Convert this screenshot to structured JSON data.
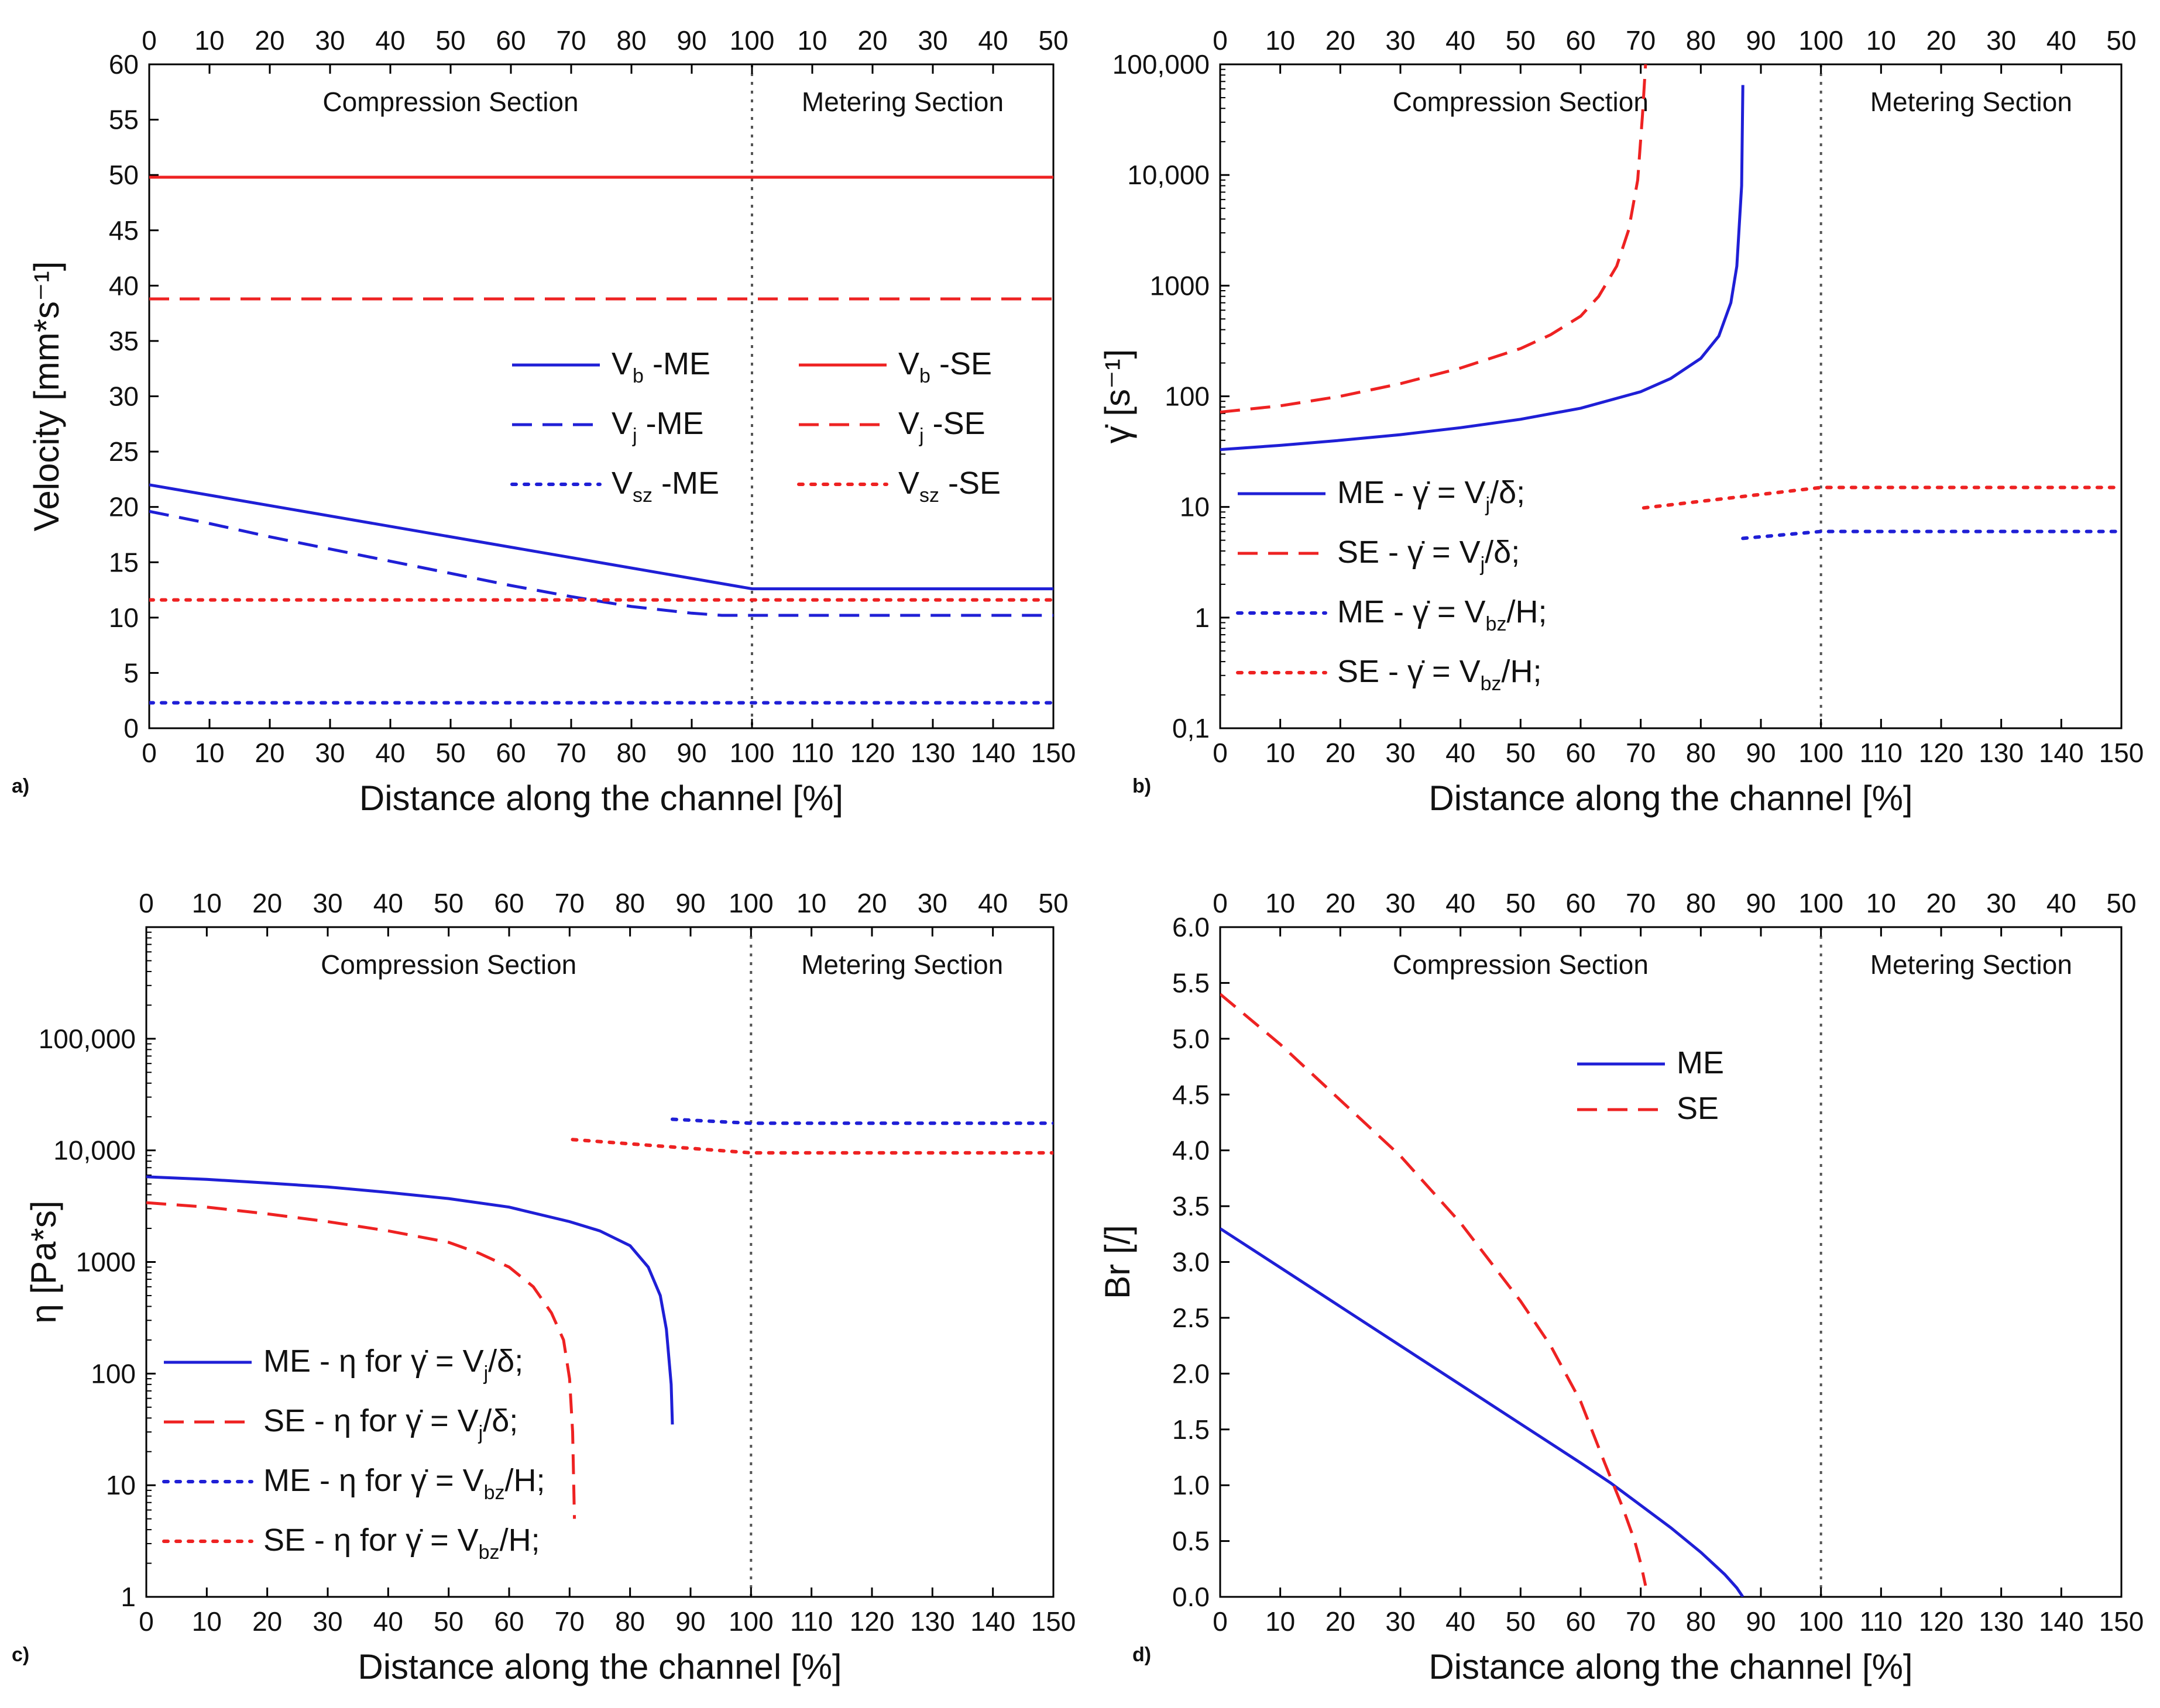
{
  "colors": {
    "me": "#1f1fd6",
    "se": "#ee2222",
    "axis": "#000000",
    "divider": "#555555"
  },
  "chart_data": [
    {
      "id": "a",
      "type": "line",
      "panel_label": "a)",
      "xlabel": "Distance along the channel [%]",
      "ylabel": "Velocity [mm*s⁻¹]",
      "xlim": [
        0,
        150
      ],
      "ylim": [
        0,
        60
      ],
      "yscale": "linear",
      "bottom_ticks": [
        "0",
        "10",
        "20",
        "30",
        "40",
        "50",
        "60",
        "70",
        "80",
        "90",
        "100",
        "110",
        "120",
        "130",
        "140",
        "150"
      ],
      "top_ticks": [
        "0",
        "10",
        "20",
        "30",
        "40",
        "50",
        "60",
        "70",
        "80",
        "90",
        "100",
        "10",
        "20",
        "30",
        "40",
        "50"
      ],
      "y_ticks": [
        {
          "v": 0,
          "t": "0"
        },
        {
          "v": 5,
          "t": "5"
        },
        {
          "v": 10,
          "t": "10"
        },
        {
          "v": 15,
          "t": "15"
        },
        {
          "v": 20,
          "t": "20"
        },
        {
          "v": 25,
          "t": "25"
        },
        {
          "v": 30,
          "t": "30"
        },
        {
          "v": 35,
          "t": "35"
        },
        {
          "v": 40,
          "t": "40"
        },
        {
          "v": 45,
          "t": "45"
        },
        {
          "v": 50,
          "t": "50"
        },
        {
          "v": 55,
          "t": "55"
        },
        {
          "v": 60,
          "t": "60"
        }
      ],
      "sections": [
        "Compression Section",
        "Metering Section"
      ],
      "divider_x": 100,
      "legend_position": "center-right",
      "legend_columns": 2,
      "series": [
        {
          "name": "Vb -ME",
          "label": "V",
          "sub": "b",
          "suffix": " -ME",
          "color": "me",
          "dash": "solid",
          "x": [
            0,
            100,
            150
          ],
          "y": [
            22,
            12.6,
            12.6
          ]
        },
        {
          "name": "Vj -ME",
          "label": "V",
          "sub": "j",
          "suffix": " -ME",
          "color": "me",
          "dash": "dashed",
          "x": [
            0,
            10,
            20,
            30,
            40,
            50,
            60,
            70,
            80,
            90,
            95,
            100,
            150
          ],
          "y": [
            19.6,
            18.5,
            17.3,
            16.2,
            15.1,
            14.0,
            12.9,
            11.9,
            11.0,
            10.4,
            10.2,
            10.2,
            10.2
          ]
        },
        {
          "name": "Vsz -ME",
          "label": "V",
          "sub": "sz",
          "suffix": " -ME",
          "color": "me",
          "dash": "dotted",
          "x": [
            0,
            150
          ],
          "y": [
            2.3,
            2.3
          ]
        },
        {
          "name": "Vb -SE",
          "label": "V",
          "sub": "b",
          "suffix": " -SE",
          "color": "se",
          "dash": "solid",
          "x": [
            0,
            150
          ],
          "y": [
            49.8,
            49.8
          ]
        },
        {
          "name": "Vj -SE",
          "label": "V",
          "sub": "j",
          "suffix": " -SE",
          "color": "se",
          "dash": "dashed",
          "x": [
            0,
            150
          ],
          "y": [
            38.8,
            38.8
          ]
        },
        {
          "name": "Vsz -SE",
          "label": "V",
          "sub": "sz",
          "suffix": " -SE",
          "color": "se",
          "dash": "dotted",
          "x": [
            0,
            150
          ],
          "y": [
            11.6,
            11.6
          ]
        }
      ]
    },
    {
      "id": "b",
      "type": "line",
      "panel_label": "b)",
      "xlabel": "Distance along the channel [%]",
      "ylabel": "γ̇ [s⁻¹]",
      "xlim": [
        0,
        150
      ],
      "ylim": [
        0.1,
        100000
      ],
      "yscale": "log",
      "bottom_ticks": [
        "0",
        "10",
        "20",
        "30",
        "40",
        "50",
        "60",
        "70",
        "80",
        "90",
        "100",
        "110",
        "120",
        "130",
        "140",
        "150"
      ],
      "top_ticks": [
        "0",
        "10",
        "20",
        "30",
        "40",
        "50",
        "60",
        "70",
        "80",
        "90",
        "100",
        "10",
        "20",
        "30",
        "40",
        "50"
      ],
      "y_ticks": [
        {
          "v": 0.1,
          "t": "0,1"
        },
        {
          "v": 1,
          "t": "1"
        },
        {
          "v": 10,
          "t": "10"
        },
        {
          "v": 100,
          "t": "100"
        },
        {
          "v": 1000,
          "t": "1000"
        },
        {
          "v": 10000,
          "t": "10,000"
        },
        {
          "v": 100000,
          "t": "100,000"
        }
      ],
      "sections": [
        "Compression Section",
        "Metering Section"
      ],
      "divider_x": 100,
      "legend_position": "lower-left",
      "legend_columns": 1,
      "series": [
        {
          "name": "ME - γ̇ = Vj/δ;",
          "label": "ME -  γ̇ = V",
          "sub": "j",
          "suffix": "/δ;",
          "color": "me",
          "dash": "solid",
          "x": [
            0,
            10,
            20,
            30,
            40,
            50,
            60,
            70,
            75,
            80,
            83,
            85,
            86,
            86.8,
            87
          ],
          "y": [
            33,
            36,
            40,
            45,
            52,
            62,
            78,
            110,
            145,
            220,
            350,
            700,
            1500,
            8000,
            65000
          ]
        },
        {
          "name": "SE - γ̇ = Vj/δ;",
          "label": "SE -  γ̇ = V",
          "sub": "j",
          "suffix": "/δ;",
          "color": "se",
          "dash": "dashed",
          "x": [
            0,
            10,
            20,
            30,
            40,
            50,
            55,
            60,
            63,
            66,
            68,
            69.5,
            70.3,
            70.8
          ],
          "y": [
            72,
            82,
            100,
            130,
            180,
            270,
            360,
            530,
            800,
            1500,
            3200,
            9000,
            35000,
            100000
          ]
        },
        {
          "name": "ME - γ̇ = Vbz/H;",
          "label": "ME -  γ̇ = V",
          "sub": "bz",
          "suffix": "/H;",
          "color": "me",
          "dash": "dotted",
          "x": [
            87,
            100,
            150
          ],
          "y": [
            5.2,
            6.0,
            6.0
          ]
        },
        {
          "name": "SE - γ̇ = Vbz/H;",
          "label": "SE -  γ̇ = V",
          "sub": "bz",
          "suffix": "/H;",
          "color": "se",
          "dash": "dotted",
          "x": [
            70.5,
            100,
            150
          ],
          "y": [
            9.8,
            15.0,
            15.0
          ]
        }
      ]
    },
    {
      "id": "c",
      "type": "line",
      "panel_label": "c)",
      "xlabel": "Distance along the channel [%]",
      "ylabel": "η [Pa*s]",
      "xlim": [
        0,
        150
      ],
      "ylim": [
        1,
        1000000
      ],
      "yscale": "log",
      "bottom_ticks": [
        "0",
        "10",
        "20",
        "30",
        "40",
        "50",
        "60",
        "70",
        "80",
        "90",
        "100",
        "110",
        "120",
        "130",
        "140",
        "150"
      ],
      "top_ticks": [
        "0",
        "10",
        "20",
        "30",
        "40",
        "50",
        "60",
        "70",
        "80",
        "90",
        "100",
        "10",
        "20",
        "30",
        "40",
        "50"
      ],
      "y_ticks": [
        {
          "v": 1,
          "t": "1"
        },
        {
          "v": 10,
          "t": "10"
        },
        {
          "v": 100,
          "t": "100"
        },
        {
          "v": 1000,
          "t": "1000"
        },
        {
          "v": 10000,
          "t": "10,000"
        },
        {
          "v": 100000,
          "t": "100,000"
        }
      ],
      "sections": [
        "Compression Section",
        "Metering Section"
      ],
      "divider_x": 100,
      "legend_position": "lower-left",
      "legend_columns": 1,
      "series": [
        {
          "name": "ME - η for γ̇ = Vj/δ;",
          "label": "ME - η for γ̇ = V",
          "sub": "j",
          "suffix": "/δ;",
          "color": "me",
          "dash": "solid",
          "x": [
            0,
            10,
            20,
            30,
            40,
            50,
            60,
            70,
            75,
            80,
            83,
            85,
            86,
            86.8,
            87
          ],
          "y": [
            5800,
            5500,
            5100,
            4700,
            4200,
            3700,
            3100,
            2300,
            1900,
            1400,
            900,
            500,
            250,
            80,
            35
          ]
        },
        {
          "name": "SE - η for γ̇ = Vj/δ;",
          "label": "SE - η for γ̇ = V",
          "sub": "j",
          "suffix": "/δ;",
          "color": "se",
          "dash": "dashed",
          "x": [
            0,
            10,
            20,
            30,
            40,
            50,
            55,
            60,
            64,
            67,
            69,
            70,
            70.5,
            70.8
          ],
          "y": [
            3400,
            3100,
            2700,
            2300,
            1900,
            1500,
            1200,
            900,
            600,
            350,
            200,
            90,
            30,
            5
          ]
        },
        {
          "name": "ME - η for γ̇ = Vbz/H;",
          "label": "ME - η for γ̇ = V",
          "sub": "bz",
          "suffix": "/H;",
          "color": "me",
          "dash": "dotted",
          "x": [
            87,
            100,
            150
          ],
          "y": [
            19000,
            17500,
            17500
          ]
        },
        {
          "name": "SE - η for γ̇ = Vbz/H;",
          "label": "SE - η for γ̇ = V",
          "sub": "bz",
          "suffix": "/H;",
          "color": "se",
          "dash": "dotted",
          "x": [
            70.5,
            100,
            150
          ],
          "y": [
            12500,
            9500,
            9500
          ]
        }
      ]
    },
    {
      "id": "d",
      "type": "line",
      "panel_label": "d)",
      "xlabel": "Distance along the channel [%]",
      "ylabel": "Br [/]",
      "xlim": [
        0,
        150
      ],
      "ylim": [
        0,
        6
      ],
      "yscale": "linear",
      "bottom_ticks": [
        "0",
        "10",
        "20",
        "30",
        "40",
        "50",
        "60",
        "70",
        "80",
        "90",
        "100",
        "110",
        "120",
        "130",
        "140",
        "150"
      ],
      "top_ticks": [
        "0",
        "10",
        "20",
        "30",
        "40",
        "50",
        "60",
        "70",
        "80",
        "90",
        "100",
        "10",
        "20",
        "30",
        "40",
        "50"
      ],
      "y_ticks": [
        {
          "v": 0,
          "t": "0.0"
        },
        {
          "v": 0.5,
          "t": "0.5"
        },
        {
          "v": 1,
          "t": "1.0"
        },
        {
          "v": 1.5,
          "t": "1.5"
        },
        {
          "v": 2,
          "t": "2.0"
        },
        {
          "v": 2.5,
          "t": "2.5"
        },
        {
          "v": 3,
          "t": "3.0"
        },
        {
          "v": 3.5,
          "t": "3.5"
        },
        {
          "v": 4,
          "t": "4.0"
        },
        {
          "v": 4.5,
          "t": "4.5"
        },
        {
          "v": 5,
          "t": "5.0"
        },
        {
          "v": 5.5,
          "t": "5.5"
        },
        {
          "v": 6,
          "t": "6.0"
        }
      ],
      "sections": [
        "Compression Section",
        "Metering Section"
      ],
      "divider_x": 100,
      "legend_position": "upper-center",
      "legend_columns": 1,
      "series": [
        {
          "name": "ME",
          "label": "ME",
          "sub": "",
          "suffix": "",
          "color": "me",
          "dash": "solid",
          "x": [
            0,
            10,
            20,
            30,
            40,
            50,
            60,
            65,
            70,
            75,
            80,
            84,
            86,
            87
          ],
          "y": [
            3.3,
            2.95,
            2.6,
            2.25,
            1.9,
            1.55,
            1.2,
            1.02,
            0.82,
            0.62,
            0.4,
            0.2,
            0.08,
            0
          ]
        },
        {
          "name": "SE",
          "label": "SE",
          "sub": "",
          "suffix": "",
          "color": "se",
          "dash": "dashed",
          "x": [
            0,
            10,
            20,
            30,
            40,
            50,
            55,
            60,
            64,
            67,
            69,
            70,
            70.8
          ],
          "y": [
            5.4,
            4.95,
            4.45,
            3.95,
            3.35,
            2.65,
            2.25,
            1.75,
            1.2,
            0.8,
            0.5,
            0.3,
            0.1
          ]
        }
      ]
    }
  ]
}
